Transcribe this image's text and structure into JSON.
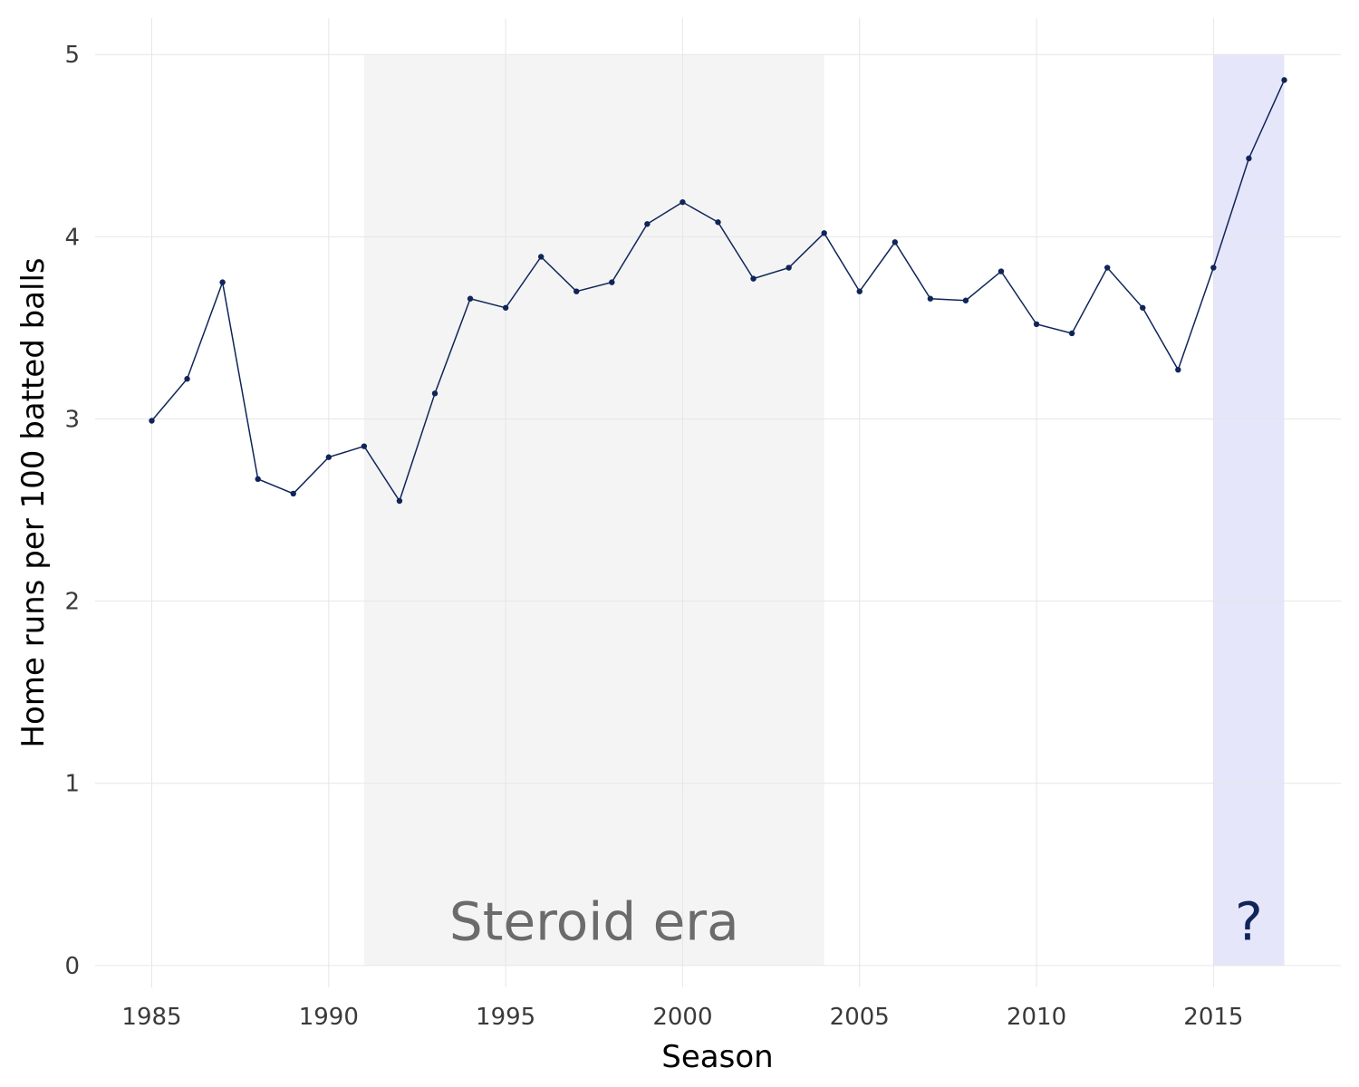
{
  "chart_data": {
    "type": "line",
    "title": "",
    "xlabel": "Season",
    "ylabel": "Home runs per 100 batted balls",
    "xlim": [
      1983.4,
      2018.6
    ],
    "ylim": [
      -0.12,
      5.2
    ],
    "x_ticks": [
      1985,
      1990,
      1995,
      2000,
      2005,
      2010,
      2015
    ],
    "y_ticks": [
      0,
      1,
      2,
      3,
      4,
      5
    ],
    "grid": true,
    "series": [
      {
        "x": [
          1985,
          1986,
          1987,
          1988,
          1989,
          1990,
          1991,
          1992,
          1993,
          1994,
          1995,
          1996,
          1997,
          1998,
          1999,
          2000,
          2001,
          2002,
          2003,
          2004,
          2005,
          2006,
          2007,
          2008,
          2009,
          2010,
          2011,
          2012,
          2013,
          2014,
          2015,
          2016,
          2017
        ],
        "y": [
          2.99,
          3.22,
          3.75,
          2.67,
          2.59,
          2.79,
          2.85,
          2.55,
          3.14,
          3.66,
          3.61,
          3.89,
          3.7,
          3.75,
          4.07,
          4.19,
          4.08,
          3.77,
          3.83,
          4.02,
          3.7,
          3.97,
          3.66,
          3.65,
          3.81,
          3.52,
          3.47,
          3.83,
          3.61,
          3.27,
          3.83,
          4.43,
          4.86
        ],
        "color": "#0f2558"
      }
    ],
    "bands": [
      {
        "x_start": 1991,
        "x_end": 2004,
        "y_top": 5,
        "label": "Steroid era",
        "fill": "#f4f4f4",
        "label_color": "#6b6b6b"
      },
      {
        "x_start": 2015,
        "x_end": 2017,
        "y_top": 5,
        "label": "?",
        "fill": "#e6e6fb",
        "label_color": "#0f2558"
      }
    ],
    "colors": {
      "line": "#0f2558",
      "grid": "#e6e6e6",
      "tick_text": "#3a3a3a"
    }
  }
}
